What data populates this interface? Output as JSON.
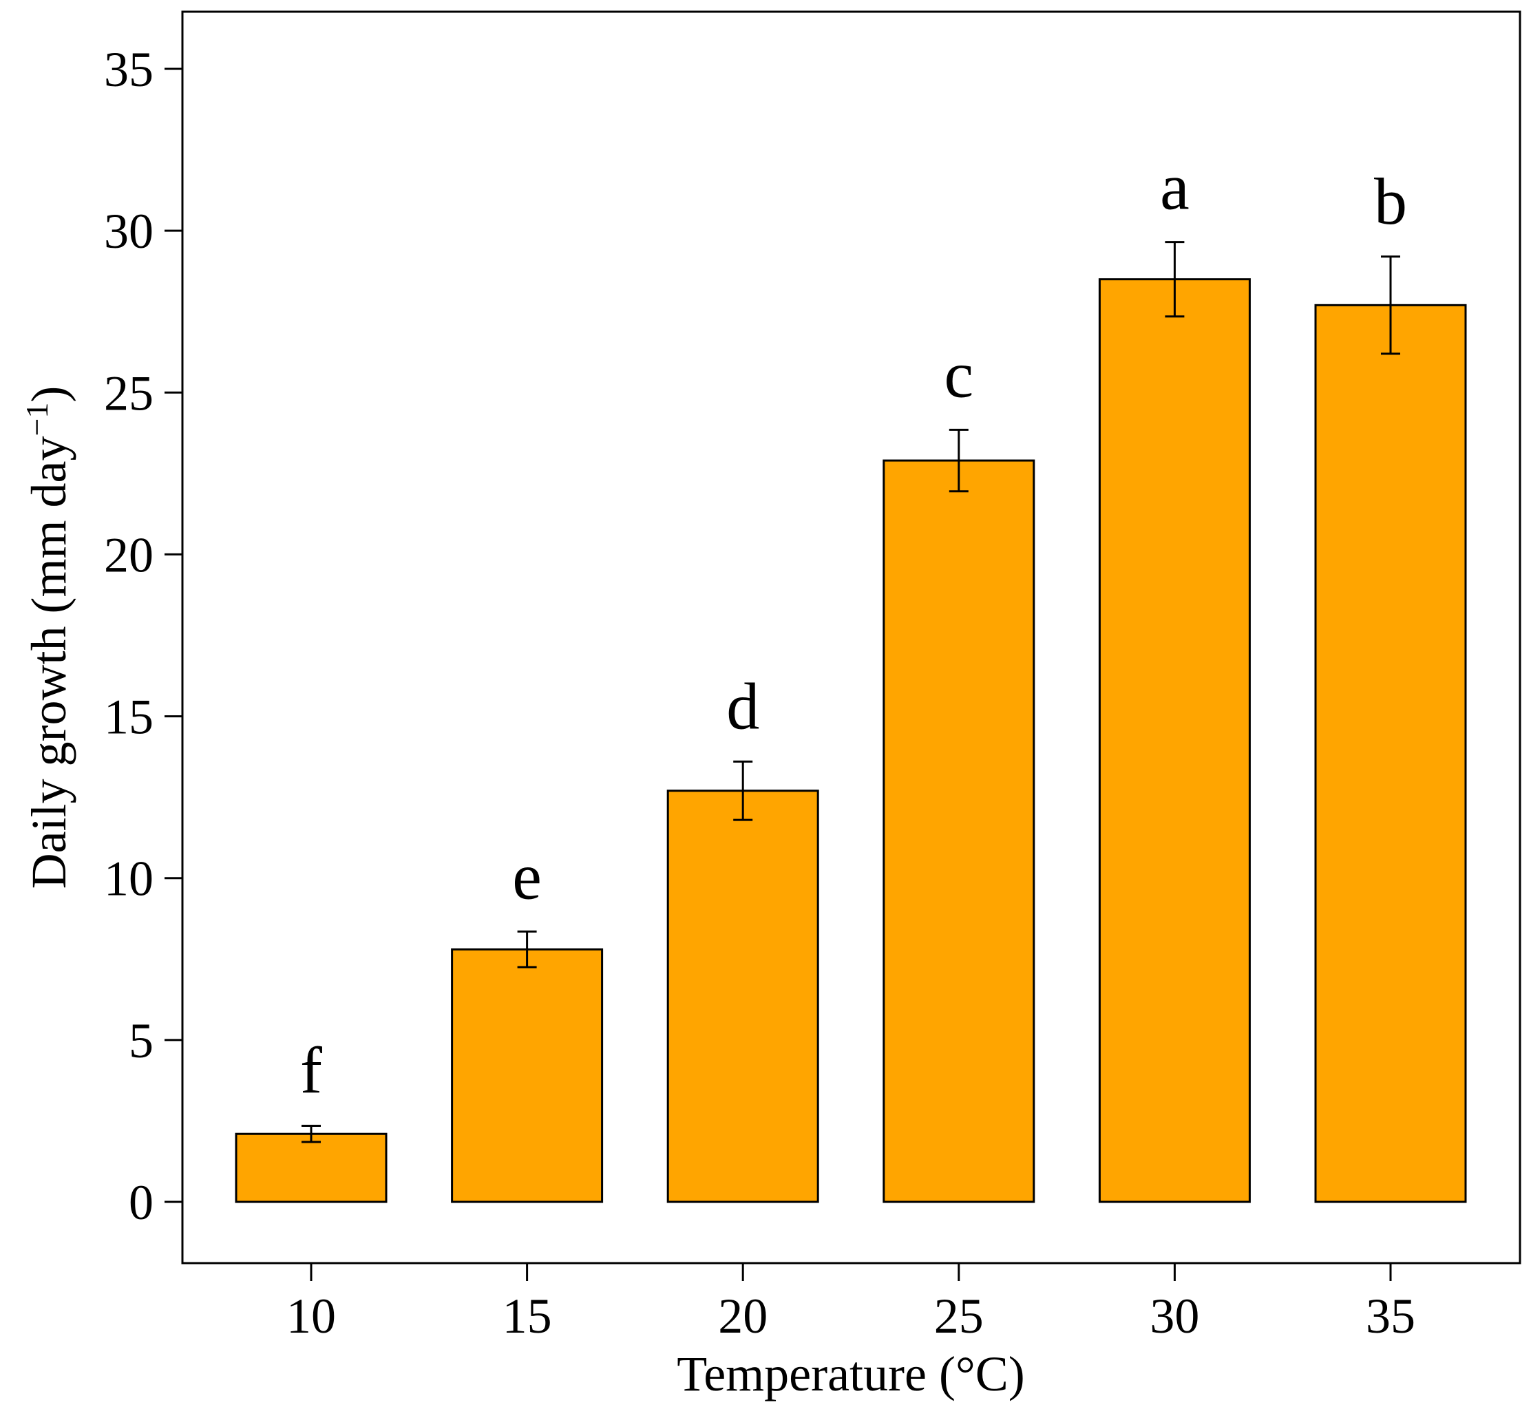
{
  "chart_data": {
    "type": "bar",
    "categories": [
      "10",
      "15",
      "20",
      "25",
      "30",
      "35"
    ],
    "values": [
      2.1,
      7.8,
      12.7,
      22.9,
      28.5,
      27.7
    ],
    "error": [
      0.25,
      0.55,
      0.9,
      0.95,
      1.15,
      1.5
    ],
    "significance_letters": [
      "f",
      "e",
      "d",
      "c",
      "a",
      "b"
    ],
    "xlabel": "Temperature (°C)",
    "ylabel_main": "Daily growth (mm day",
    "ylabel_superscript": "−1",
    "ylabel_close": ")",
    "ylim": [
      -1.5,
      37
    ],
    "yticks": [
      0,
      5,
      10,
      15,
      20,
      25,
      30,
      35
    ],
    "grid": false,
    "bar_color": "#FFA500"
  }
}
